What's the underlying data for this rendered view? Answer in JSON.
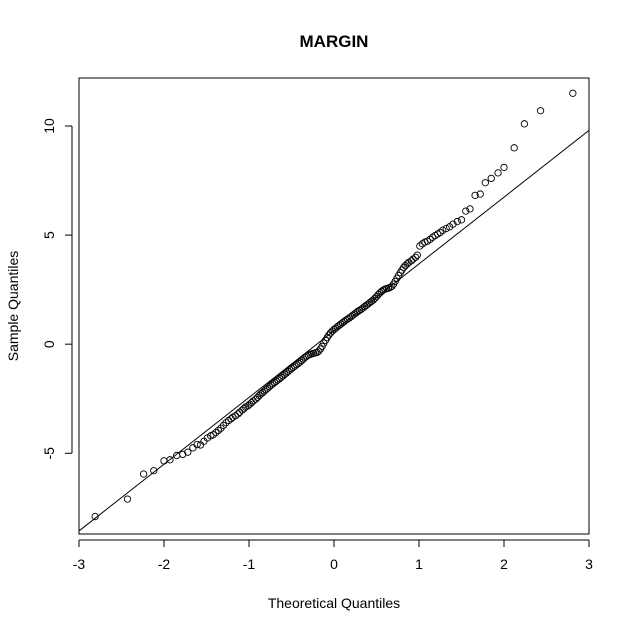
{
  "chart_data": {
    "type": "scatter",
    "title": "MARGIN",
    "xlabel": "Theoretical Quantiles",
    "ylabel": "Sample Quantiles",
    "xlim": [
      -3,
      3
    ],
    "ylim": [
      -8.7,
      12.2
    ],
    "x_ticks": [
      -3,
      -2,
      -1,
      0,
      1,
      2,
      3
    ],
    "y_ticks": [
      -5,
      0,
      5,
      10
    ],
    "x_tick_labels": [
      "-3",
      "-2",
      "-1",
      "0",
      "1",
      "2",
      "3"
    ],
    "y_tick_labels": [
      "-5",
      "0",
      "5",
      "10"
    ],
    "grid": false,
    "legend": "none",
    "marker": "open-circle",
    "colors": {
      "points": "#000000",
      "line": "#000000",
      "frame": "#000000",
      "background": "#ffffff"
    },
    "reference_line": {
      "slope": 3.06,
      "intercept": 0.62
    },
    "series": [
      {
        "points": [
          [
            -2.81,
            -7.9
          ],
          [
            -2.43,
            -7.1
          ],
          [
            -2.24,
            -5.95
          ],
          [
            -2.12,
            -5.8
          ],
          [
            -2.0,
            -5.35
          ],
          [
            -1.93,
            -5.3
          ],
          [
            -1.85,
            -5.1
          ],
          [
            -1.78,
            -5.05
          ],
          [
            -1.72,
            -4.95
          ],
          [
            -1.66,
            -4.75
          ],
          [
            -1.61,
            -4.6
          ],
          [
            -1.57,
            -4.62
          ],
          [
            -1.53,
            -4.45
          ],
          [
            -1.49,
            -4.3
          ],
          [
            -1.45,
            -4.2
          ],
          [
            -1.42,
            -4.15
          ],
          [
            -1.39,
            -4.05
          ],
          [
            -1.36,
            -3.95
          ],
          [
            -1.33,
            -3.85
          ],
          [
            -1.3,
            -3.72
          ],
          [
            -1.27,
            -3.6
          ],
          [
            -1.24,
            -3.5
          ],
          [
            -1.21,
            -3.42
          ],
          [
            -1.19,
            -3.35
          ],
          [
            -1.16,
            -3.28
          ],
          [
            -1.13,
            -3.2
          ],
          [
            -1.11,
            -3.12
          ],
          [
            -1.08,
            -3.02
          ],
          [
            -1.06,
            -2.95
          ],
          [
            -1.04,
            -2.88
          ],
          [
            -1.01,
            -2.82
          ],
          [
            -0.99,
            -2.75
          ],
          [
            -0.97,
            -2.68
          ],
          [
            -0.95,
            -2.6
          ],
          [
            -0.92,
            -2.52
          ],
          [
            -0.9,
            -2.44
          ],
          [
            -0.88,
            -2.36
          ],
          [
            -0.86,
            -2.28
          ],
          [
            -0.84,
            -2.22
          ],
          [
            -0.82,
            -2.15
          ],
          [
            -0.8,
            -2.08
          ],
          [
            -0.78,
            -2.02
          ],
          [
            -0.76,
            -1.95
          ],
          [
            -0.74,
            -1.88
          ],
          [
            -0.72,
            -1.82
          ],
          [
            -0.7,
            -1.76
          ],
          [
            -0.68,
            -1.7
          ],
          [
            -0.66,
            -1.64
          ],
          [
            -0.64,
            -1.58
          ],
          [
            -0.62,
            -1.52
          ],
          [
            -0.6,
            -1.45
          ],
          [
            -0.58,
            -1.38
          ],
          [
            -0.56,
            -1.32
          ],
          [
            -0.54,
            -1.25
          ],
          [
            -0.52,
            -1.18
          ],
          [
            -0.5,
            -1.12
          ],
          [
            -0.48,
            -1.06
          ],
          [
            -0.46,
            -1.0
          ],
          [
            -0.44,
            -0.94
          ],
          [
            -0.42,
            -0.88
          ],
          [
            -0.4,
            -0.82
          ],
          [
            -0.38,
            -0.75
          ],
          [
            -0.36,
            -0.68
          ],
          [
            -0.34,
            -0.6
          ],
          [
            -0.32,
            -0.55
          ],
          [
            -0.3,
            -0.5
          ],
          [
            -0.28,
            -0.47
          ],
          [
            -0.26,
            -0.44
          ],
          [
            -0.24,
            -0.42
          ],
          [
            -0.22,
            -0.4
          ],
          [
            -0.2,
            -0.38
          ],
          [
            -0.18,
            -0.32
          ],
          [
            -0.16,
            -0.22
          ],
          [
            -0.14,
            -0.1
          ],
          [
            -0.12,
            0.05
          ],
          [
            -0.1,
            0.18
          ],
          [
            -0.08,
            0.3
          ],
          [
            -0.06,
            0.42
          ],
          [
            -0.04,
            0.52
          ],
          [
            -0.02,
            0.6
          ],
          [
            0.0,
            0.67
          ],
          [
            0.02,
            0.73
          ],
          [
            0.04,
            0.8
          ],
          [
            0.06,
            0.86
          ],
          [
            0.08,
            0.92
          ],
          [
            0.1,
            0.98
          ],
          [
            0.12,
            1.04
          ],
          [
            0.14,
            1.1
          ],
          [
            0.16,
            1.15
          ],
          [
            0.18,
            1.2
          ],
          [
            0.2,
            1.26
          ],
          [
            0.22,
            1.32
          ],
          [
            0.24,
            1.38
          ],
          [
            0.26,
            1.44
          ],
          [
            0.28,
            1.5
          ],
          [
            0.3,
            1.55
          ],
          [
            0.32,
            1.6
          ],
          [
            0.34,
            1.66
          ],
          [
            0.36,
            1.72
          ],
          [
            0.38,
            1.78
          ],
          [
            0.4,
            1.84
          ],
          [
            0.42,
            1.9
          ],
          [
            0.44,
            1.96
          ],
          [
            0.46,
            2.02
          ],
          [
            0.48,
            2.1
          ],
          [
            0.5,
            2.18
          ],
          [
            0.52,
            2.27
          ],
          [
            0.54,
            2.35
          ],
          [
            0.56,
            2.42
          ],
          [
            0.58,
            2.48
          ],
          [
            0.6,
            2.52
          ],
          [
            0.62,
            2.55
          ],
          [
            0.64,
            2.57
          ],
          [
            0.66,
            2.6
          ],
          [
            0.68,
            2.65
          ],
          [
            0.7,
            2.75
          ],
          [
            0.72,
            2.88
          ],
          [
            0.74,
            3.02
          ],
          [
            0.76,
            3.15
          ],
          [
            0.78,
            3.28
          ],
          [
            0.8,
            3.4
          ],
          [
            0.82,
            3.52
          ],
          [
            0.84,
            3.6
          ],
          [
            0.86,
            3.68
          ],
          [
            0.88,
            3.75
          ],
          [
            0.91,
            3.82
          ],
          [
            0.93,
            3.9
          ],
          [
            0.96,
            3.98
          ],
          [
            0.98,
            4.08
          ],
          [
            1.01,
            4.5
          ],
          [
            1.04,
            4.6
          ],
          [
            1.07,
            4.68
          ],
          [
            1.1,
            4.72
          ],
          [
            1.13,
            4.8
          ],
          [
            1.16,
            4.9
          ],
          [
            1.19,
            4.98
          ],
          [
            1.22,
            5.05
          ],
          [
            1.25,
            5.12
          ],
          [
            1.28,
            5.22
          ],
          [
            1.32,
            5.3
          ],
          [
            1.36,
            5.38
          ],
          [
            1.4,
            5.5
          ],
          [
            1.45,
            5.62
          ],
          [
            1.5,
            5.7
          ],
          [
            1.55,
            6.1
          ],
          [
            1.6,
            6.2
          ],
          [
            1.66,
            6.82
          ],
          [
            1.72,
            6.88
          ],
          [
            1.78,
            7.4
          ],
          [
            1.85,
            7.6
          ],
          [
            1.93,
            7.85
          ],
          [
            2.0,
            8.1
          ],
          [
            2.12,
            9.0
          ],
          [
            2.24,
            10.1
          ],
          [
            2.43,
            10.7
          ],
          [
            2.81,
            11.5
          ]
        ]
      }
    ]
  }
}
